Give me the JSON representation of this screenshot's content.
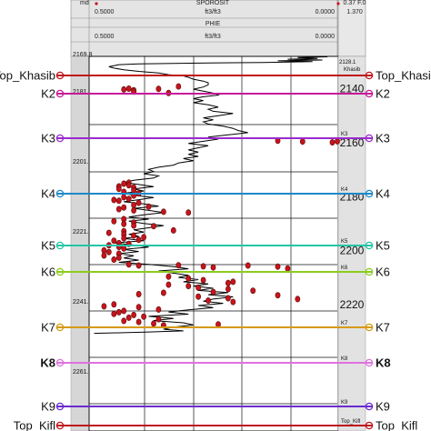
{
  "header": {
    "row1": {
      "unit_left": "md",
      "min": "0.5000",
      "name": "SPOROSIT",
      "unit": "ft3/ft3",
      "max": "0.0000",
      "right_a": "0.37 F.0"
    },
    "row2": {
      "min": "0.5000",
      "unit": "ft3/ft3",
      "max": "0.0000",
      "right": "1.370"
    },
    "row3": {
      "name": "PHIE"
    },
    "row4": {
      "min": "0.5000",
      "unit": "ft3/ft3",
      "max": "0.0000"
    }
  },
  "md_track": {
    "labels": [
      "2169.8",
      "2181.7",
      "2201.7",
      "2221.7",
      "2241.7",
      "2261.7"
    ]
  },
  "tvd_track": {
    "top_value": "2128.1",
    "top_marker": "Khasib",
    "labels": [
      "2140",
      "2160",
      "2180",
      "2200",
      "2220"
    ],
    "marker_labels": [
      "K3",
      "K4",
      "K5",
      "K6",
      "K7",
      "K8",
      "K9",
      "Top_Kifl"
    ]
  },
  "markers": [
    {
      "name": "Top_Khasib",
      "color": "#c0141c",
      "bold": false
    },
    {
      "name": "K2",
      "color": "#c61a9a",
      "bold": false
    },
    {
      "name": "K3",
      "color": "#9a2bcc",
      "bold": false
    },
    {
      "name": "K4",
      "color": "#1e88c8",
      "bold": false
    },
    {
      "name": "K5",
      "color": "#22c6a6",
      "bold": false
    },
    {
      "name": "K6",
      "color": "#8ccc1e",
      "bold": false
    },
    {
      "name": "K7",
      "color": "#d69a10",
      "bold": false
    },
    {
      "name": "K8",
      "color": "#e070e0",
      "bold": true
    },
    {
      "name": "K9",
      "color": "#6a2bd0",
      "bold": false
    },
    {
      "name": "Top_Kifl",
      "color": "#c0141c",
      "bold": false
    }
  ],
  "curve_color": "#000000",
  "point_color": "#c8141c",
  "core_points": [
    [
      0.32,
      2139.2
    ],
    [
      0.36,
      2140.1
    ],
    [
      0.42,
      2140.0
    ],
    [
      0.43,
      2140.3
    ],
    [
      0.41,
      2140.6
    ],
    [
      0.41,
      2141.1
    ],
    [
      0.34,
      2141.6
    ],
    [
      0.12,
      2159.3
    ],
    [
      0.07,
      2159.6
    ],
    [
      0.01,
      2159.9
    ],
    [
      0.0,
      2159.5
    ],
    [
      0.42,
      2174.8
    ],
    [
      0.43,
      2175.2
    ],
    [
      0.42,
      2175.8
    ],
    [
      0.44,
      2176.2
    ],
    [
      0.41,
      2176.6
    ],
    [
      0.44,
      2177.1
    ],
    [
      0.41,
      2177.6
    ],
    [
      0.43,
      2178.2
    ],
    [
      0.4,
      2178.8
    ],
    [
      0.41,
      2179.6
    ],
    [
      0.43,
      2180.2
    ],
    [
      0.42,
      2180.8
    ],
    [
      0.45,
      2181.2
    ],
    [
      0.44,
      2181.5
    ],
    [
      0.4,
      2182.3
    ],
    [
      0.41,
      2183.1
    ],
    [
      0.38,
      2183.7
    ],
    [
      0.43,
      2184.0
    ],
    [
      0.44,
      2184.6
    ],
    [
      0.41,
      2185.1
    ],
    [
      0.35,
      2185.6
    ],
    [
      0.3,
      2185.9
    ],
    [
      0.43,
      2188.3
    ],
    [
      0.45,
      2189.1
    ],
    [
      0.41,
      2189.6
    ],
    [
      0.43,
      2190.1
    ],
    [
      0.41,
      2190.7
    ],
    [
      0.37,
      2190.9
    ],
    [
      0.33,
      2192.5
    ],
    [
      0.43,
      2192.8
    ],
    [
      0.46,
      2193.4
    ],
    [
      0.43,
      2194.0
    ],
    [
      0.41,
      2194.4
    ],
    [
      0.39,
      2195.0
    ],
    [
      0.43,
      2195.4
    ],
    [
      0.4,
      2196.0
    ],
    [
      0.45,
      2196.3
    ],
    [
      0.44,
      2197.2
    ],
    [
      0.42,
      2197.5
    ],
    [
      0.46,
      2198.0
    ],
    [
      0.44,
      2198.6
    ],
    [
      0.43,
      2199.2
    ],
    [
      0.47,
      2199.9
    ],
    [
      0.46,
      2200.5
    ],
    [
      0.44,
      2201.1
    ],
    [
      0.47,
      2201.8
    ],
    [
      0.44,
      2202.6
    ],
    [
      0.45,
      2203.3
    ],
    [
      0.42,
      2205.1
    ],
    [
      0.4,
      2205.5
    ],
    [
      0.32,
      2205.4
    ],
    [
      0.27,
      2205.8
    ],
    [
      0.25,
      2206.2
    ],
    [
      0.12,
      2205.9
    ],
    [
      0.1,
      2206.6
    ],
    [
      0.18,
      2205.5
    ],
    [
      0.34,
      2209.6
    ],
    [
      0.3,
      2210.3
    ],
    [
      0.27,
      2210.9
    ],
    [
      0.22,
      2212.0
    ],
    [
      0.21,
      2211.5
    ],
    [
      0.34,
      2212.6
    ],
    [
      0.3,
      2213.1
    ],
    [
      0.28,
      2213.7
    ],
    [
      0.22,
      2214.2
    ],
    [
      0.17,
      2214.8
    ],
    [
      0.25,
      2215.3
    ],
    [
      0.35,
      2215.6
    ],
    [
      0.4,
      2216.1
    ],
    [
      0.12,
      2216.5
    ],
    [
      0.28,
      2217.0
    ],
    [
      0.22,
      2217.6
    ],
    [
      0.08,
      2217.9
    ],
    [
      0.26,
      2218.5
    ],
    [
      0.21,
      2219.0
    ],
    [
      0.45,
      2219.9
    ],
    [
      0.47,
      2220.6
    ],
    [
      0.4,
      2220.9
    ],
    [
      0.36,
      2221.8
    ],
    [
      0.43,
      2222.3
    ],
    [
      0.44,
      2222.8
    ],
    [
      0.45,
      2223.4
    ],
    [
      0.41,
      2223.8
    ],
    [
      0.39,
      2224.4
    ],
    [
      0.42,
      2224.8
    ],
    [
      0.36,
      2225.4
    ],
    [
      0.43,
      2226.0
    ],
    [
      0.4,
      2226.4
    ],
    [
      0.37,
      2227.0
    ],
    [
      0.35,
      2227.6
    ],
    [
      0.24,
      2227.3
    ]
  ],
  "curve_points": [
    [
      0.02,
      2128.2
    ],
    [
      0.08,
      2128.5
    ],
    [
      0.04,
      2128.8
    ],
    [
      0.1,
      2129.1
    ],
    [
      0.03,
      2129.4
    ],
    [
      0.12,
      2129.7
    ],
    [
      0.05,
      2130.0
    ],
    [
      0.15,
      2130.3
    ],
    [
      0.26,
      2130.5
    ],
    [
      0.4,
      2130.8
    ],
    [
      0.44,
      2131.1
    ],
    [
      0.45,
      2131.5
    ],
    [
      0.46,
      2131.9
    ],
    [
      0.45,
      2132.4
    ],
    [
      0.43,
      2133.0
    ],
    [
      0.4,
      2133.6
    ],
    [
      0.36,
      2134.2
    ],
    [
      0.34,
      2134.8
    ],
    [
      0.31,
      2135.3
    ],
    [
      0.3,
      2135.8
    ],
    [
      0.29,
      2136.5
    ],
    [
      0.27,
      2137.2
    ],
    [
      0.26,
      2137.8
    ],
    [
      0.26,
      2138.6
    ],
    [
      0.27,
      2139.4
    ],
    [
      0.29,
      2140.2
    ],
    [
      0.27,
      2140.9
    ],
    [
      0.25,
      2141.6
    ],
    [
      0.24,
      2142.4
    ],
    [
      0.27,
      2143.0
    ],
    [
      0.29,
      2143.7
    ],
    [
      0.27,
      2144.4
    ],
    [
      0.29,
      2145.2
    ],
    [
      0.26,
      2146.0
    ],
    [
      0.24,
      2146.8
    ],
    [
      0.26,
      2147.6
    ],
    [
      0.25,
      2148.4
    ],
    [
      0.21,
      2149.2
    ],
    [
      0.24,
      2150.0
    ],
    [
      0.27,
      2150.8
    ],
    [
      0.25,
      2151.5
    ],
    [
      0.27,
      2152.3
    ],
    [
      0.26,
      2153.1
    ],
    [
      0.23,
      2153.9
    ],
    [
      0.21,
      2154.7
    ],
    [
      0.2,
      2155.5
    ],
    [
      0.18,
      2156.3
    ],
    [
      0.22,
      2157.1
    ],
    [
      0.26,
      2157.9
    ],
    [
      0.24,
      2158.7
    ],
    [
      0.27,
      2159.5
    ],
    [
      0.3,
      2160.3
    ],
    [
      0.26,
      2161.1
    ],
    [
      0.28,
      2161.9
    ],
    [
      0.3,
      2162.7
    ],
    [
      0.28,
      2163.5
    ],
    [
      0.3,
      2164.3
    ],
    [
      0.28,
      2165.1
    ],
    [
      0.31,
      2165.9
    ],
    [
      0.29,
      2166.7
    ],
    [
      0.32,
      2167.5
    ],
    [
      0.33,
      2168.3
    ],
    [
      0.36,
      2169.1
    ],
    [
      0.38,
      2169.9
    ],
    [
      0.37,
      2170.7
    ],
    [
      0.39,
      2171.5
    ],
    [
      0.36,
      2172.3
    ],
    [
      0.37,
      2173.1
    ],
    [
      0.41,
      2173.9
    ],
    [
      0.43,
      2174.7
    ],
    [
      0.4,
      2175.5
    ],
    [
      0.37,
      2176.3
    ],
    [
      0.41,
      2177.1
    ],
    [
      0.39,
      2177.9
    ],
    [
      0.43,
      2178.7
    ],
    [
      0.41,
      2179.5
    ],
    [
      0.37,
      2180.3
    ],
    [
      0.4,
      2181.1
    ],
    [
      0.43,
      2181.9
    ],
    [
      0.39,
      2182.7
    ],
    [
      0.36,
      2183.5
    ],
    [
      0.41,
      2184.3
    ],
    [
      0.38,
      2185.1
    ],
    [
      0.35,
      2185.9
    ],
    [
      0.39,
      2186.7
    ],
    [
      0.42,
      2187.5
    ],
    [
      0.38,
      2188.3
    ],
    [
      0.42,
      2189.1
    ],
    [
      0.39,
      2189.9
    ],
    [
      0.35,
      2190.7
    ],
    [
      0.38,
      2191.5
    ],
    [
      0.41,
      2192.3
    ],
    [
      0.39,
      2193.1
    ],
    [
      0.42,
      2193.9
    ],
    [
      0.4,
      2194.7
    ],
    [
      0.43,
      2195.5
    ],
    [
      0.39,
      2196.3
    ],
    [
      0.45,
      2197.1
    ],
    [
      0.41,
      2197.9
    ],
    [
      0.38,
      2198.7
    ],
    [
      0.43,
      2199.5
    ],
    [
      0.4,
      2200.3
    ],
    [
      0.44,
      2201.1
    ],
    [
      0.41,
      2201.9
    ],
    [
      0.43,
      2202.7
    ],
    [
      0.4,
      2203.5
    ],
    [
      0.44,
      2204.3
    ],
    [
      0.38,
      2205.1
    ],
    [
      0.33,
      2205.9
    ],
    [
      0.3,
      2206.7
    ],
    [
      0.36,
      2207.5
    ],
    [
      0.33,
      2208.3
    ],
    [
      0.3,
      2209.1
    ],
    [
      0.32,
      2209.9
    ],
    [
      0.28,
      2210.7
    ],
    [
      0.31,
      2211.5
    ],
    [
      0.26,
      2212.3
    ],
    [
      0.29,
      2213.1
    ],
    [
      0.25,
      2213.9
    ],
    [
      0.28,
      2214.7
    ],
    [
      0.22,
      2215.5
    ],
    [
      0.26,
      2216.3
    ],
    [
      0.21,
      2217.1
    ],
    [
      0.25,
      2217.9
    ],
    [
      0.27,
      2218.7
    ],
    [
      0.23,
      2219.5
    ],
    [
      0.28,
      2220.3
    ],
    [
      0.25,
      2221.1
    ],
    [
      0.3,
      2221.9
    ],
    [
      0.34,
      2222.7
    ],
    [
      0.3,
      2223.5
    ],
    [
      0.38,
      2224.3
    ],
    [
      0.33,
      2225.1
    ],
    [
      0.37,
      2225.9
    ],
    [
      0.31,
      2226.7
    ],
    [
      0.29,
      2227.5
    ],
    [
      0.33,
      2228.3
    ],
    [
      0.35,
      2229.1
    ],
    [
      0.31,
      2229.7
    ],
    [
      0.38,
      2230.1
    ],
    [
      0.44,
      2230.4
    ],
    [
      0.49,
      2230.6
    ]
  ]
}
